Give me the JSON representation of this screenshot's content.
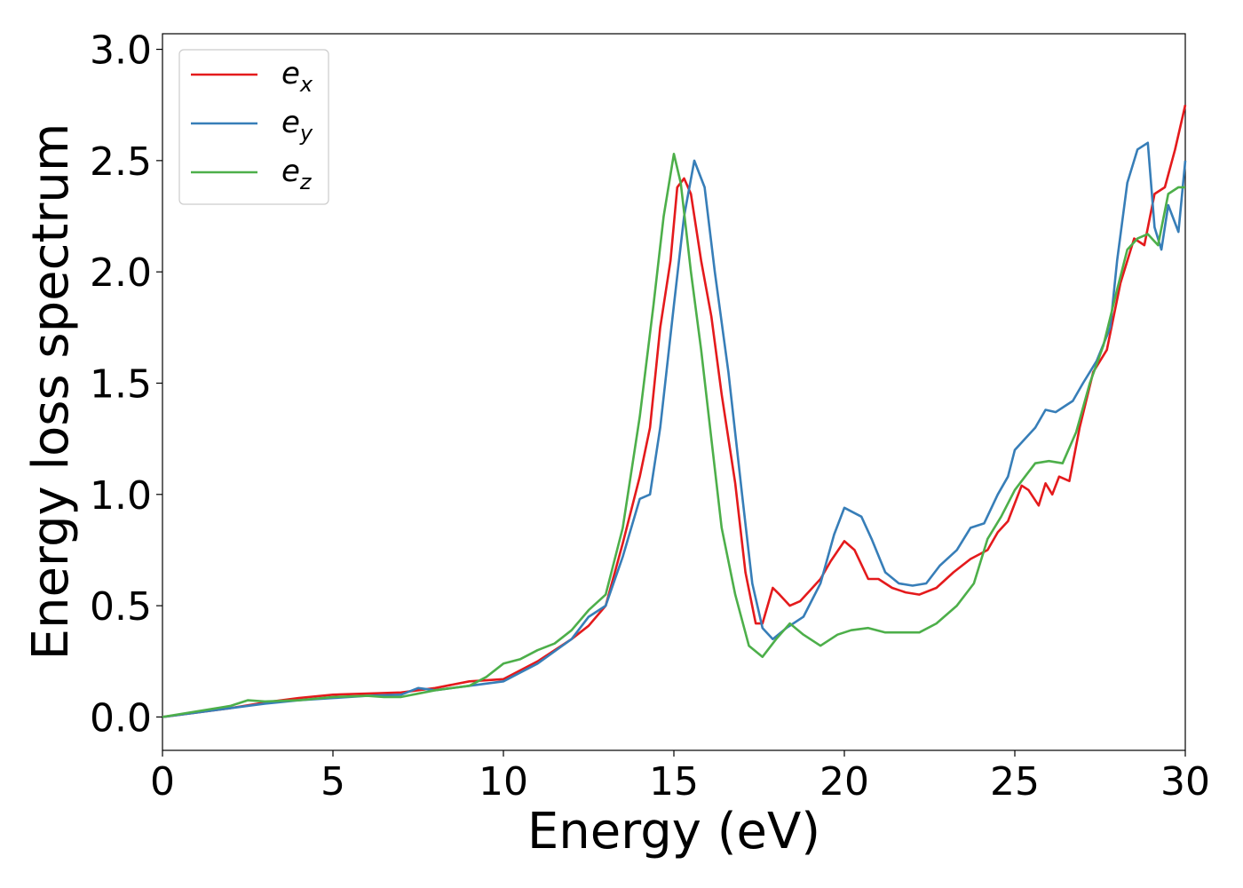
{
  "chart_data": {
    "type": "line",
    "xlabel": "Energy (eV)",
    "ylabel": "Energy loss spectrum",
    "xlim": [
      0,
      30
    ],
    "ylim": [
      -0.15,
      3.07
    ],
    "xticks": [
      "0",
      "5",
      "10",
      "15",
      "20",
      "25",
      "30"
    ],
    "yticks": [
      "0.0",
      "0.5",
      "1.0",
      "1.5",
      "2.0",
      "2.5",
      "3.0"
    ],
    "grid": false,
    "legend_position": "top-left",
    "series": [
      {
        "name": "e_x",
        "legend_base": "e",
        "legend_sub": "x",
        "color": "#e41a1c",
        "points": [
          [
            0,
            0
          ],
          [
            1,
            0.02
          ],
          [
            2,
            0.04
          ],
          [
            3,
            0.065
          ],
          [
            4,
            0.085
          ],
          [
            5,
            0.1
          ],
          [
            6,
            0.105
          ],
          [
            7,
            0.11
          ],
          [
            8,
            0.13
          ],
          [
            9,
            0.16
          ],
          [
            10,
            0.17
          ],
          [
            11,
            0.25
          ],
          [
            12,
            0.35
          ],
          [
            12.5,
            0.41
          ],
          [
            13,
            0.5
          ],
          [
            13.5,
            0.78
          ],
          [
            14,
            1.08
          ],
          [
            14.3,
            1.3
          ],
          [
            14.6,
            1.75
          ],
          [
            14.9,
            2.05
          ],
          [
            15.1,
            2.38
          ],
          [
            15.3,
            2.42
          ],
          [
            15.5,
            2.35
          ],
          [
            15.8,
            2.05
          ],
          [
            16.1,
            1.8
          ],
          [
            16.4,
            1.45
          ],
          [
            16.8,
            1.05
          ],
          [
            17.1,
            0.65
          ],
          [
            17.4,
            0.42
          ],
          [
            17.6,
            0.42
          ],
          [
            17.9,
            0.58
          ],
          [
            18.1,
            0.55
          ],
          [
            18.4,
            0.5
          ],
          [
            18.7,
            0.52
          ],
          [
            19,
            0.57
          ],
          [
            19.3,
            0.62
          ],
          [
            19.6,
            0.7
          ],
          [
            20,
            0.79
          ],
          [
            20.3,
            0.75
          ],
          [
            20.7,
            0.62
          ],
          [
            21,
            0.62
          ],
          [
            21.4,
            0.58
          ],
          [
            21.8,
            0.56
          ],
          [
            22.2,
            0.55
          ],
          [
            22.7,
            0.58
          ],
          [
            23.2,
            0.65
          ],
          [
            23.7,
            0.71
          ],
          [
            24.2,
            0.75
          ],
          [
            24.5,
            0.83
          ],
          [
            24.8,
            0.88
          ],
          [
            25,
            0.96
          ],
          [
            25.2,
            1.04
          ],
          [
            25.4,
            1.02
          ],
          [
            25.7,
            0.95
          ],
          [
            25.9,
            1.05
          ],
          [
            26.1,
            1.0
          ],
          [
            26.3,
            1.08
          ],
          [
            26.6,
            1.06
          ],
          [
            26.9,
            1.3
          ],
          [
            27.3,
            1.55
          ],
          [
            27.7,
            1.65
          ],
          [
            28.1,
            1.95
          ],
          [
            28.5,
            2.15
          ],
          [
            28.8,
            2.12
          ],
          [
            29.1,
            2.35
          ],
          [
            29.4,
            2.38
          ],
          [
            29.7,
            2.55
          ],
          [
            30,
            2.75
          ]
        ]
      },
      {
        "name": "e_y",
        "legend_base": "e",
        "legend_sub": "y",
        "color": "#377eb8",
        "points": [
          [
            0,
            0
          ],
          [
            1,
            0.02
          ],
          [
            2,
            0.04
          ],
          [
            3,
            0.06
          ],
          [
            4,
            0.075
          ],
          [
            5,
            0.085
          ],
          [
            6,
            0.095
          ],
          [
            7,
            0.1
          ],
          [
            7.5,
            0.13
          ],
          [
            8,
            0.12
          ],
          [
            9,
            0.14
          ],
          [
            10,
            0.16
          ],
          [
            11,
            0.24
          ],
          [
            12,
            0.35
          ],
          [
            12.5,
            0.45
          ],
          [
            13,
            0.5
          ],
          [
            13.5,
            0.72
          ],
          [
            14,
            0.98
          ],
          [
            14.3,
            1.0
          ],
          [
            14.6,
            1.3
          ],
          [
            15,
            1.85
          ],
          [
            15.3,
            2.25
          ],
          [
            15.6,
            2.5
          ],
          [
            15.9,
            2.38
          ],
          [
            16.2,
            2.0
          ],
          [
            16.6,
            1.55
          ],
          [
            17,
            1.0
          ],
          [
            17.3,
            0.6
          ],
          [
            17.6,
            0.4
          ],
          [
            17.9,
            0.35
          ],
          [
            18.3,
            0.4
          ],
          [
            18.8,
            0.45
          ],
          [
            19.3,
            0.6
          ],
          [
            19.7,
            0.82
          ],
          [
            20,
            0.94
          ],
          [
            20.5,
            0.9
          ],
          [
            20.8,
            0.8
          ],
          [
            21.2,
            0.65
          ],
          [
            21.6,
            0.6
          ],
          [
            22,
            0.59
          ],
          [
            22.4,
            0.6
          ],
          [
            22.8,
            0.68
          ],
          [
            23.3,
            0.75
          ],
          [
            23.7,
            0.85
          ],
          [
            24.1,
            0.87
          ],
          [
            24.5,
            1.0
          ],
          [
            24.8,
            1.08
          ],
          [
            25,
            1.2
          ],
          [
            25.3,
            1.25
          ],
          [
            25.6,
            1.3
          ],
          [
            25.9,
            1.38
          ],
          [
            26.2,
            1.37
          ],
          [
            26.5,
            1.4
          ],
          [
            26.7,
            1.42
          ],
          [
            27,
            1.5
          ],
          [
            27.4,
            1.6
          ],
          [
            27.8,
            1.75
          ],
          [
            28,
            2.05
          ],
          [
            28.3,
            2.4
          ],
          [
            28.6,
            2.55
          ],
          [
            28.9,
            2.58
          ],
          [
            29.1,
            2.2
          ],
          [
            29.3,
            2.1
          ],
          [
            29.5,
            2.3
          ],
          [
            29.8,
            2.18
          ],
          [
            30,
            2.5
          ]
        ]
      },
      {
        "name": "e_z",
        "legend_base": "e",
        "legend_sub": "z",
        "color": "#4daf4a",
        "points": [
          [
            0,
            0
          ],
          [
            1,
            0.025
          ],
          [
            2,
            0.05
          ],
          [
            2.5,
            0.075
          ],
          [
            3,
            0.07
          ],
          [
            4,
            0.075
          ],
          [
            5,
            0.09
          ],
          [
            6,
            0.095
          ],
          [
            6.5,
            0.09
          ],
          [
            7,
            0.09
          ],
          [
            8,
            0.12
          ],
          [
            9,
            0.14
          ],
          [
            9.5,
            0.18
          ],
          [
            10,
            0.24
          ],
          [
            10.5,
            0.26
          ],
          [
            11,
            0.3
          ],
          [
            11.5,
            0.33
          ],
          [
            12,
            0.39
          ],
          [
            12.5,
            0.48
          ],
          [
            13,
            0.55
          ],
          [
            13.5,
            0.85
          ],
          [
            14,
            1.35
          ],
          [
            14.4,
            1.85
          ],
          [
            14.7,
            2.25
          ],
          [
            15,
            2.53
          ],
          [
            15.2,
            2.4
          ],
          [
            15.5,
            2.0
          ],
          [
            15.8,
            1.65
          ],
          [
            16.1,
            1.25
          ],
          [
            16.4,
            0.85
          ],
          [
            16.8,
            0.55
          ],
          [
            17.2,
            0.32
          ],
          [
            17.6,
            0.27
          ],
          [
            18,
            0.35
          ],
          [
            18.4,
            0.42
          ],
          [
            18.8,
            0.37
          ],
          [
            19.3,
            0.32
          ],
          [
            19.8,
            0.37
          ],
          [
            20.2,
            0.39
          ],
          [
            20.7,
            0.4
          ],
          [
            21.2,
            0.38
          ],
          [
            21.7,
            0.38
          ],
          [
            22.2,
            0.38
          ],
          [
            22.7,
            0.42
          ],
          [
            23.3,
            0.5
          ],
          [
            23.8,
            0.6
          ],
          [
            24.2,
            0.8
          ],
          [
            24.6,
            0.9
          ],
          [
            25,
            1.02
          ],
          [
            25.3,
            1.08
          ],
          [
            25.6,
            1.14
          ],
          [
            26,
            1.15
          ],
          [
            26.4,
            1.14
          ],
          [
            26.8,
            1.28
          ],
          [
            27.2,
            1.5
          ],
          [
            27.6,
            1.67
          ],
          [
            28,
            1.92
          ],
          [
            28.3,
            2.1
          ],
          [
            28.6,
            2.15
          ],
          [
            28.9,
            2.17
          ],
          [
            29.2,
            2.12
          ],
          [
            29.5,
            2.35
          ],
          [
            29.8,
            2.38
          ],
          [
            30,
            2.38
          ]
        ]
      }
    ]
  }
}
